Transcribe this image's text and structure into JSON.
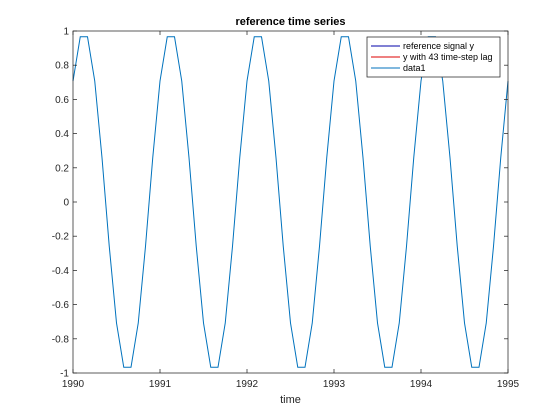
{
  "chart_data": {
    "type": "line",
    "title": "reference time series",
    "xlabel": "time",
    "ylabel": "",
    "xlim": [
      1990,
      1995
    ],
    "ylim": [
      -1,
      1
    ],
    "xticks": [
      1990,
      1991,
      1992,
      1993,
      1994,
      1995
    ],
    "yticks": [
      -1,
      -0.8,
      -0.6,
      -0.4,
      -0.2,
      0,
      0.2,
      0.4,
      0.6,
      0.8,
      1
    ],
    "ytick_labels": [
      "-1",
      "-0.8",
      "-0.6",
      "-0.4",
      "-0.2",
      "0",
      "0.2",
      "0.4",
      "0.6",
      "0.8",
      "1"
    ],
    "grid": false,
    "legend_position": "top-right",
    "series": [
      {
        "name": "reference signal y",
        "color": "#0000aa",
        "x": [],
        "y": []
      },
      {
        "name": "y with 43 time-step lag",
        "color": "#dd0000",
        "x": [],
        "y": []
      },
      {
        "name": "data1",
        "color": "#0072bd",
        "x": [
          1990,
          1990.0833,
          1990.1667,
          1990.25,
          1990.3333,
          1990.4167,
          1990.5,
          1990.5833,
          1990.6667,
          1990.75,
          1990.8333,
          1990.9167,
          1991,
          1991.0833,
          1991.1667,
          1991.25,
          1991.3333,
          1991.4167,
          1991.5,
          1991.5833,
          1991.6667,
          1991.75,
          1991.8333,
          1991.9167,
          1992,
          1992.0833,
          1992.1667,
          1992.25,
          1992.3333,
          1992.4167,
          1992.5,
          1992.5833,
          1992.6667,
          1992.75,
          1992.8333,
          1992.9167,
          1993,
          1993.0833,
          1993.1667,
          1993.25,
          1993.3333,
          1993.4167,
          1993.5,
          1993.5833,
          1993.6667,
          1993.75,
          1993.8333,
          1993.9167,
          1994,
          1994.0833,
          1994.1667,
          1994.25,
          1994.3333,
          1994.4167,
          1994.5,
          1994.5833,
          1994.6667,
          1994.75,
          1994.8333,
          1994.9167,
          1995
        ],
        "y": [
          0.707,
          0.966,
          0.966,
          0.707,
          0.259,
          -0.259,
          -0.707,
          -0.966,
          -0.966,
          -0.707,
          -0.259,
          0.259,
          0.707,
          0.966,
          0.966,
          0.707,
          0.259,
          -0.259,
          -0.707,
          -0.966,
          -0.966,
          -0.707,
          -0.259,
          0.259,
          0.707,
          0.966,
          0.966,
          0.707,
          0.259,
          -0.259,
          -0.707,
          -0.966,
          -0.966,
          -0.707,
          -0.259,
          0.259,
          0.707,
          0.966,
          0.966,
          0.707,
          0.259,
          -0.259,
          -0.707,
          -0.966,
          -0.966,
          -0.707,
          -0.259,
          0.259,
          0.707,
          0.966,
          0.966,
          0.707,
          0.259,
          -0.259,
          -0.707,
          -0.966,
          -0.966,
          -0.707,
          -0.259,
          0.259,
          0.707
        ]
      }
    ]
  }
}
